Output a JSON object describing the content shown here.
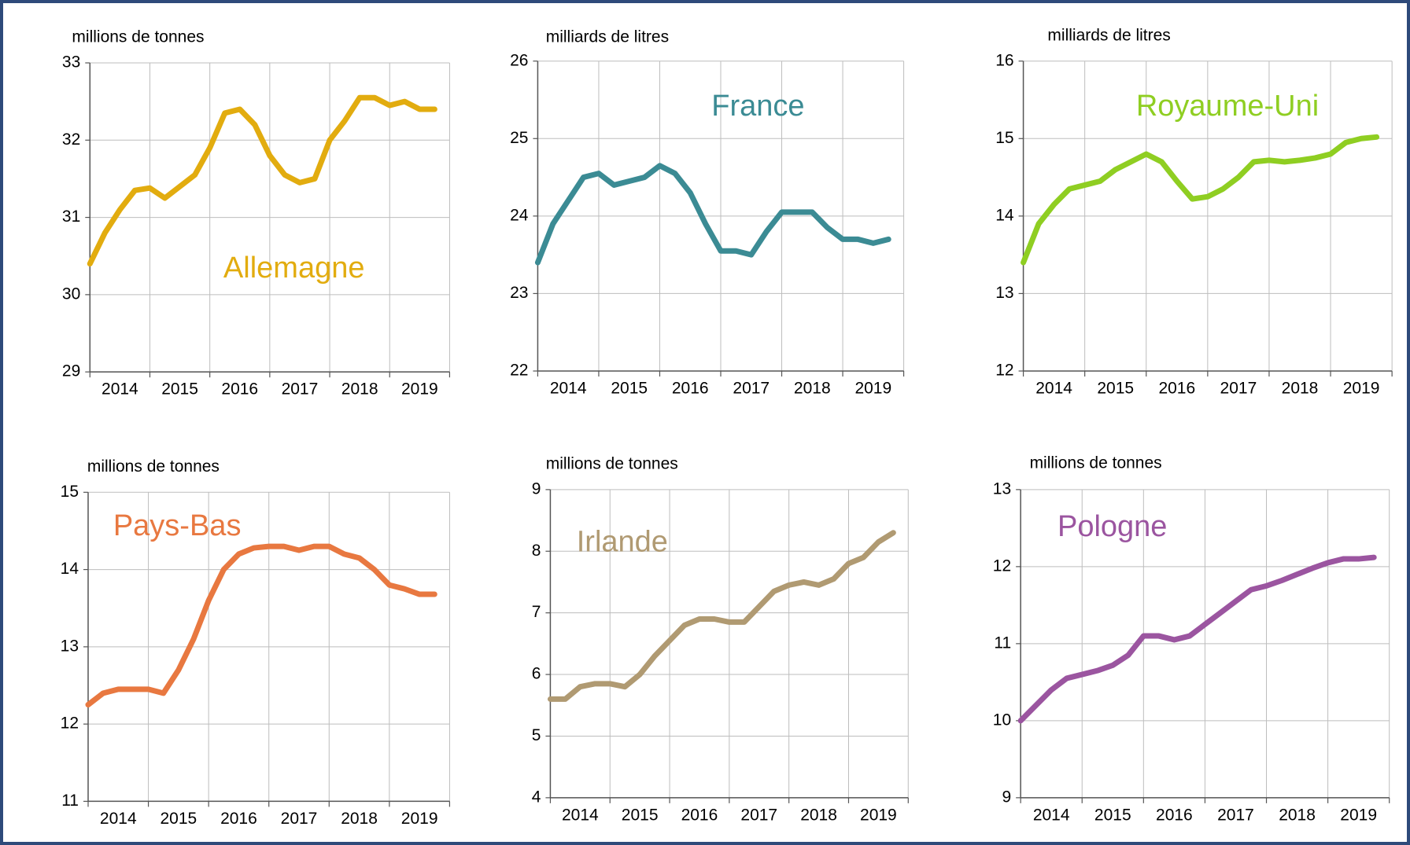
{
  "chart_data": [
    {
      "type": "line",
      "y_label": "millions de tonnes",
      "categories": [
        "2014",
        "2015",
        "2016",
        "2017",
        "2018",
        "2019"
      ],
      "x": [
        2014,
        2014.25,
        2014.5,
        2014.75,
        2015,
        2015.25,
        2015.5,
        2015.75,
        2016,
        2016.25,
        2016.5,
        2016.75,
        2017,
        2017.25,
        2017.5,
        2017.75,
        2018,
        2018.25,
        2018.5,
        2018.75,
        2019,
        2019.25,
        2019.5,
        2019.75
      ],
      "xlim": [
        2014,
        2020
      ],
      "xticks": [
        2014,
        2015,
        2016,
        2017,
        2018,
        2019,
        2020
      ],
      "ylim": [
        29,
        33
      ],
      "yticks": [
        29,
        30,
        31,
        32,
        33
      ],
      "grid": true,
      "series": [
        {
          "name": "Allemagne",
          "color": "#e2ac0f",
          "values": [
            30.4,
            30.8,
            31.1,
            31.35,
            31.38,
            31.25,
            31.4,
            31.55,
            31.9,
            32.35,
            32.4,
            32.2,
            31.8,
            31.55,
            31.45,
            31.5,
            32.0,
            32.25,
            32.55,
            32.55,
            32.45,
            32.5,
            32.4,
            32.4
          ]
        }
      ]
    },
    {
      "type": "line",
      "y_label": "milliards de litres",
      "categories": [
        "2014",
        "2015",
        "2016",
        "2017",
        "2018",
        "2019"
      ],
      "x": [
        2014,
        2014.25,
        2014.5,
        2014.75,
        2015,
        2015.25,
        2015.5,
        2015.75,
        2016,
        2016.25,
        2016.5,
        2016.75,
        2017,
        2017.25,
        2017.5,
        2017.75,
        2018,
        2018.25,
        2018.5,
        2018.75,
        2019,
        2019.25,
        2019.5,
        2019.75
      ],
      "xlim": [
        2014,
        2020
      ],
      "xticks": [
        2014,
        2015,
        2016,
        2017,
        2018,
        2019,
        2020
      ],
      "ylim": [
        22,
        26
      ],
      "yticks": [
        22,
        23,
        24,
        25,
        26
      ],
      "grid": true,
      "series": [
        {
          "name": "France",
          "color": "#3b8b94",
          "values": [
            23.4,
            23.9,
            24.2,
            24.5,
            24.55,
            24.4,
            24.45,
            24.5,
            24.65,
            24.55,
            24.3,
            23.9,
            23.55,
            23.55,
            23.5,
            23.8,
            24.05,
            24.05,
            24.05,
            23.85,
            23.7,
            23.7,
            23.65,
            23.7
          ]
        }
      ]
    },
    {
      "type": "line",
      "y_label": "milliards de litres",
      "categories": [
        "2014",
        "2015",
        "2016",
        "2017",
        "2018",
        "2019"
      ],
      "x": [
        2014,
        2014.25,
        2014.5,
        2014.75,
        2015,
        2015.25,
        2015.5,
        2015.75,
        2016,
        2016.25,
        2016.5,
        2016.75,
        2017,
        2017.25,
        2017.5,
        2017.75,
        2018,
        2018.25,
        2018.5,
        2018.75,
        2019,
        2019.25,
        2019.5,
        2019.75
      ],
      "xlim": [
        2014,
        2020
      ],
      "xticks": [
        2014,
        2015,
        2016,
        2017,
        2018,
        2019,
        2020
      ],
      "ylim": [
        12,
        16
      ],
      "yticks": [
        12,
        13,
        14,
        15,
        16
      ],
      "grid": true,
      "series": [
        {
          "name": "Royaume-Uni",
          "color": "#8fce22",
          "values": [
            13.4,
            13.9,
            14.15,
            14.35,
            14.4,
            14.45,
            14.6,
            14.7,
            14.8,
            14.7,
            14.45,
            14.22,
            14.25,
            14.35,
            14.5,
            14.7,
            14.72,
            14.7,
            14.72,
            14.75,
            14.8,
            14.95,
            15.0,
            15.02
          ]
        }
      ]
    },
    {
      "type": "line",
      "y_label": "millions de tonnes",
      "categories": [
        "2014",
        "2015",
        "2016",
        "2017",
        "2018",
        "2019"
      ],
      "x": [
        2014,
        2014.25,
        2014.5,
        2014.75,
        2015,
        2015.25,
        2015.5,
        2015.75,
        2016,
        2016.25,
        2016.5,
        2016.75,
        2017,
        2017.25,
        2017.5,
        2017.75,
        2018,
        2018.25,
        2018.5,
        2018.75,
        2019,
        2019.25,
        2019.5,
        2019.75
      ],
      "xlim": [
        2014,
        2020
      ],
      "xticks": [
        2014,
        2015,
        2016,
        2017,
        2018,
        2019,
        2020
      ],
      "ylim": [
        11,
        15
      ],
      "yticks": [
        11,
        12,
        13,
        14,
        15
      ],
      "grid": true,
      "series": [
        {
          "name": "Pays-Bas",
          "color": "#e87840",
          "values": [
            12.25,
            12.4,
            12.45,
            12.45,
            12.45,
            12.4,
            12.7,
            13.1,
            13.6,
            14.0,
            14.2,
            14.28,
            14.3,
            14.3,
            14.25,
            14.3,
            14.3,
            14.2,
            14.15,
            14.0,
            13.8,
            13.75,
            13.68,
            13.68
          ]
        }
      ]
    },
    {
      "type": "line",
      "y_label": "millions de tonnes",
      "categories": [
        "2014",
        "2015",
        "2016",
        "2017",
        "2018",
        "2019"
      ],
      "x": [
        2014,
        2014.25,
        2014.5,
        2014.75,
        2015,
        2015.25,
        2015.5,
        2015.75,
        2016,
        2016.25,
        2016.5,
        2016.75,
        2017,
        2017.25,
        2017.5,
        2017.75,
        2018,
        2018.25,
        2018.5,
        2018.75,
        2019,
        2019.25,
        2019.5,
        2019.75
      ],
      "xlim": [
        2014,
        2020
      ],
      "xticks": [
        2014,
        2015,
        2016,
        2017,
        2018,
        2019,
        2020
      ],
      "ylim": [
        4,
        9
      ],
      "yticks": [
        4,
        5,
        6,
        7,
        8,
        9
      ],
      "grid": true,
      "series": [
        {
          "name": "Irlande",
          "color": "#b09a72",
          "values": [
            5.6,
            5.6,
            5.8,
            5.85,
            5.85,
            5.8,
            6.0,
            6.3,
            6.55,
            6.8,
            6.9,
            6.9,
            6.85,
            6.85,
            7.1,
            7.35,
            7.45,
            7.5,
            7.45,
            7.55,
            7.8,
            7.9,
            8.15,
            8.3
          ]
        }
      ]
    },
    {
      "type": "line",
      "y_label": "millions de tonnes",
      "categories": [
        "2014",
        "2015",
        "2016",
        "2017",
        "2018",
        "2019"
      ],
      "x": [
        2014,
        2014.25,
        2014.5,
        2014.75,
        2015,
        2015.25,
        2015.5,
        2015.75,
        2016,
        2016.25,
        2016.5,
        2016.75,
        2017,
        2017.25,
        2017.5,
        2017.75,
        2018,
        2018.25,
        2018.5,
        2018.75,
        2019,
        2019.25,
        2019.5,
        2019.75
      ],
      "xlim": [
        2014,
        2020
      ],
      "xticks": [
        2014,
        2015,
        2016,
        2017,
        2018,
        2019,
        2020
      ],
      "ylim": [
        9,
        13
      ],
      "yticks": [
        9,
        10,
        11,
        12,
        13
      ],
      "grid": true,
      "series": [
        {
          "name": "Pologne",
          "color": "#9b55a0",
          "values": [
            10.0,
            10.2,
            10.4,
            10.55,
            10.6,
            10.65,
            10.72,
            10.85,
            11.1,
            11.1,
            11.05,
            11.1,
            11.25,
            11.4,
            11.55,
            11.7,
            11.75,
            11.82,
            11.9,
            11.98,
            12.05,
            12.1,
            12.1,
            12.12
          ]
        }
      ]
    }
  ]
}
